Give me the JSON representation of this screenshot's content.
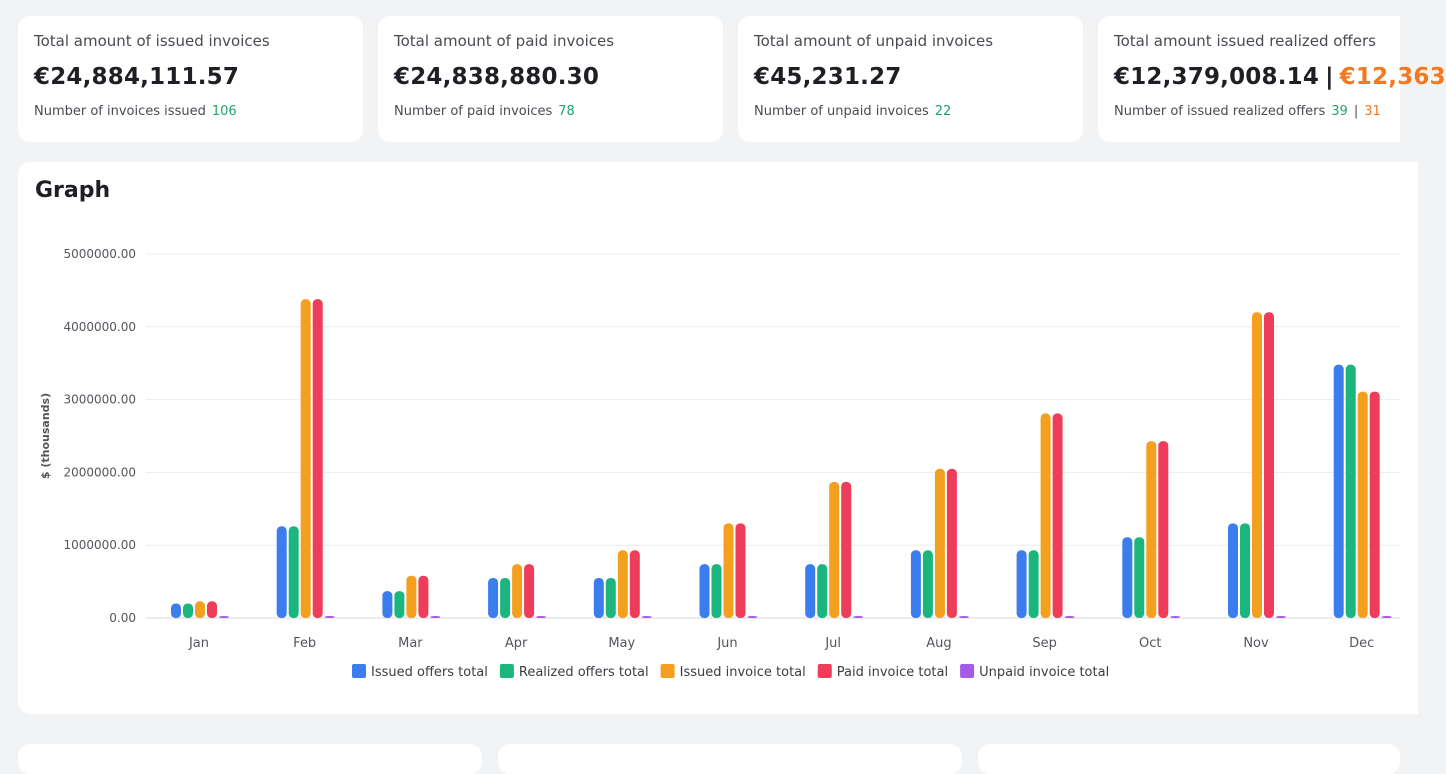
{
  "cards": [
    {
      "title": "Total amount of issued invoices",
      "amount": "€24,884,111.57",
      "count_label": "Number of invoices issued",
      "count": "106"
    },
    {
      "title": "Total amount of paid invoices",
      "amount": "€24,838,880.30",
      "count_label": "Number of paid invoices",
      "count": "78"
    },
    {
      "title": "Total amount of unpaid invoices",
      "amount": "€45,231.27",
      "count_label": "Number of unpaid invoices",
      "count": "22"
    },
    {
      "title": "Total amount issued realized offers",
      "amount": "€12,379,008.14",
      "amount_sep": "|",
      "amount_alt": "€12,363",
      "count_label": "Number of issued realized offers",
      "count": "39",
      "count_sep": "|",
      "count_alt": "31"
    }
  ],
  "graph": {
    "title": "Graph"
  },
  "colors": {
    "issued_offers": "#3b7ded",
    "realized_offers": "#1bb67e",
    "issued_invoice": "#f3a01f",
    "paid_invoice": "#ee3d5b",
    "unpaid_invoice": "#a55be8",
    "grid": "#ececef",
    "tick_text": "#55555d"
  },
  "chart_data": {
    "type": "bar",
    "ylabel": "$ (thousands)",
    "ylim": [
      0,
      5000000
    ],
    "yticks": [
      "0.00",
      "1000000.00",
      "2000000.00",
      "3000000.00",
      "4000000.00",
      "5000000.00"
    ],
    "categories": [
      "Jan",
      "Feb",
      "Mar",
      "Apr",
      "May",
      "Jun",
      "Jul",
      "Aug",
      "Sep",
      "Oct",
      "Nov",
      "Dec"
    ],
    "grid": true,
    "legend_position": "bottom",
    "series": [
      {
        "name": "Issued offers total",
        "color_key": "issued_offers",
        "values": [
          200000,
          1260000,
          370000,
          550000,
          550000,
          740000,
          740000,
          930000,
          930000,
          1110000,
          1300000,
          3480000
        ]
      },
      {
        "name": "Realized offers total",
        "color_key": "realized_offers",
        "values": [
          200000,
          1260000,
          370000,
          550000,
          550000,
          740000,
          740000,
          930000,
          930000,
          1110000,
          1300000,
          3480000
        ]
      },
      {
        "name": "Issued invoice total",
        "color_key": "issued_invoice",
        "values": [
          230000,
          4380000,
          580000,
          740000,
          930000,
          1300000,
          1870000,
          2050000,
          2810000,
          2430000,
          4200000,
          3110000
        ]
      },
      {
        "name": "Paid invoice total",
        "color_key": "paid_invoice",
        "values": [
          230000,
          4380000,
          580000,
          740000,
          930000,
          1300000,
          1870000,
          2050000,
          2810000,
          2430000,
          4200000,
          3110000
        ]
      },
      {
        "name": "Unpaid invoice total",
        "color_key": "unpaid_invoice",
        "values": [
          0,
          0,
          0,
          0,
          0,
          0,
          0,
          0,
          0,
          0,
          0,
          0
        ]
      }
    ]
  }
}
